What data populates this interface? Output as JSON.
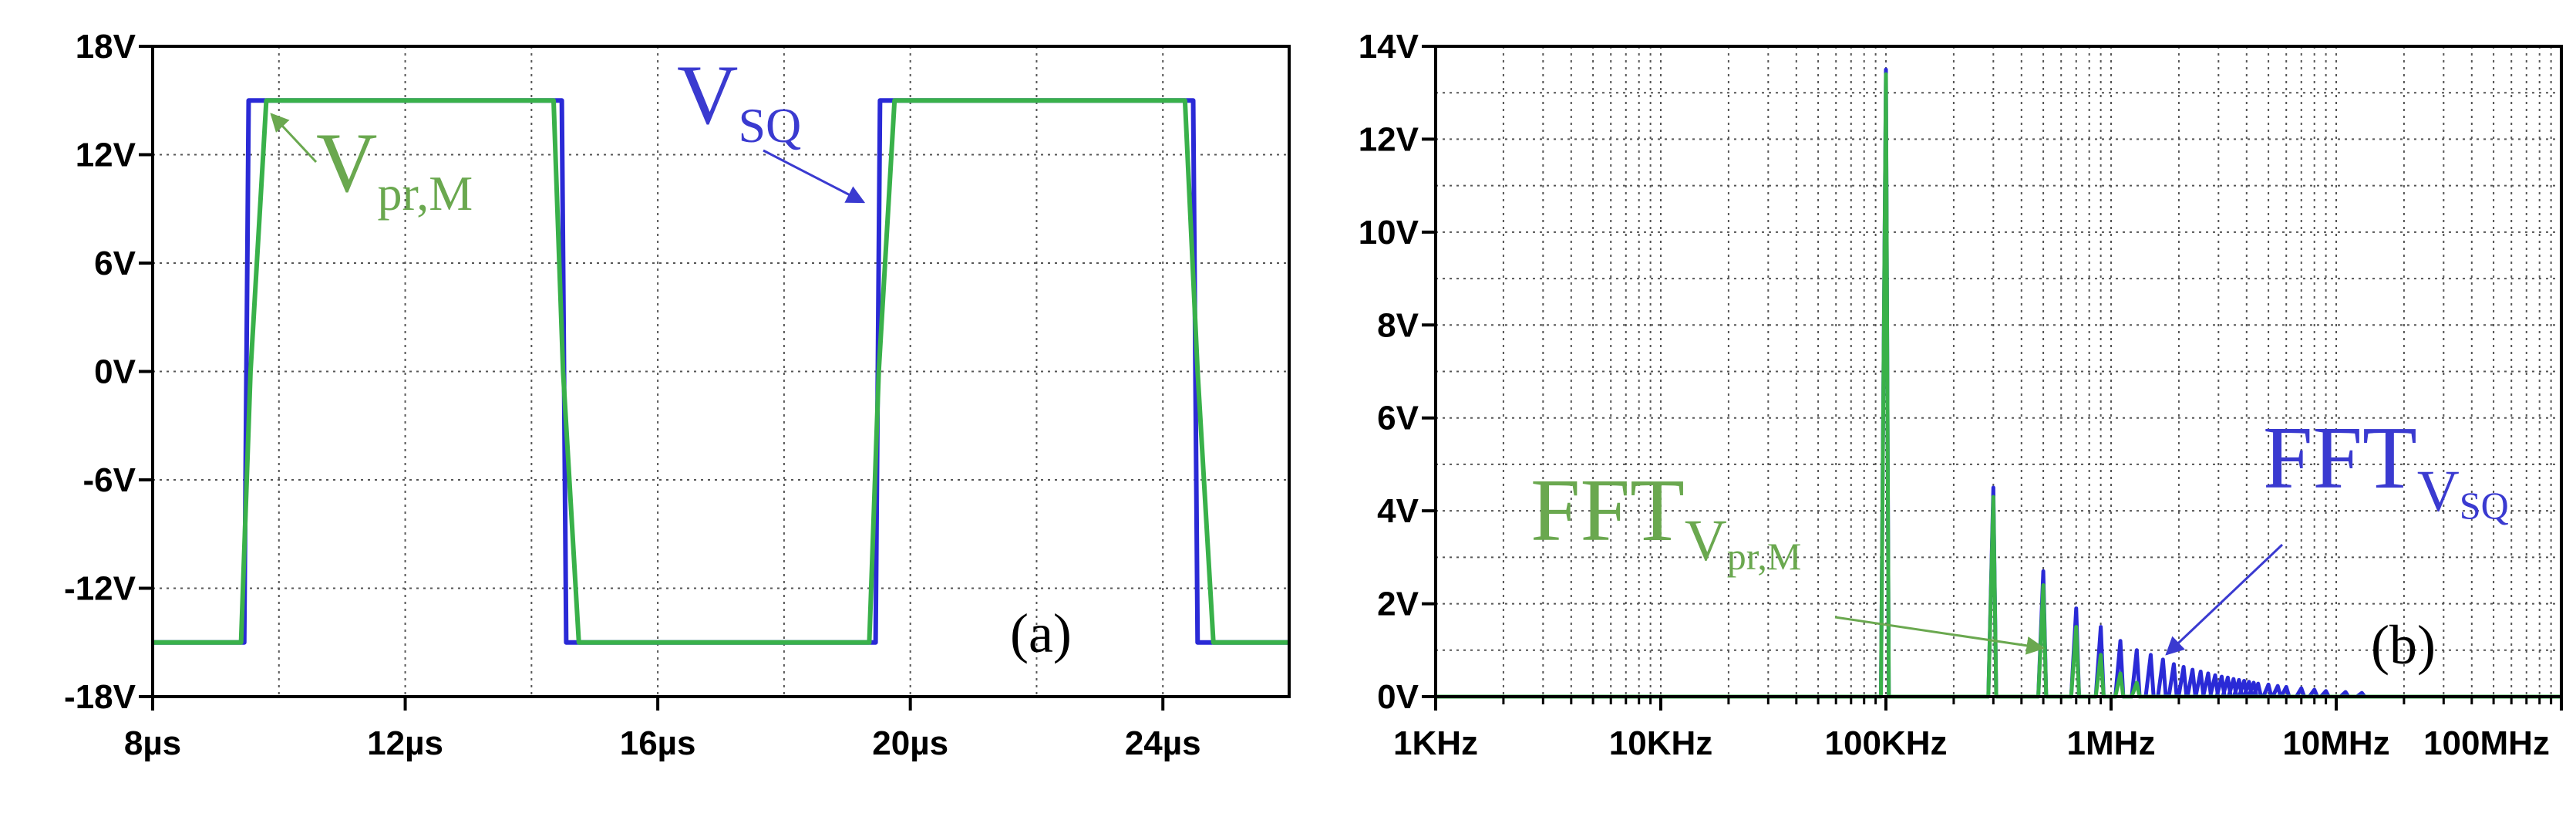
{
  "colors": {
    "blue": "#2a2ad6",
    "green": "#39b14a",
    "annot_blue": "#3a3ad0",
    "annot_green": "#6aa84f",
    "grid": "#555555",
    "frame": "#000000"
  },
  "chart_data": [
    {
      "type": "line",
      "panel_label": "(a)",
      "xlim": [
        8,
        26
      ],
      "ylim": [
        -18,
        18
      ],
      "x_ticks": [
        8,
        12,
        16,
        20,
        24
      ],
      "x_tick_labels": [
        "8µs",
        "12µs",
        "16µs",
        "20µs",
        "24µs"
      ],
      "y_ticks": [
        18,
        12,
        6,
        0,
        -6,
        -12,
        -18
      ],
      "y_tick_labels": [
        "18V",
        "12V",
        "6V",
        "0V",
        "-6V",
        "-12V",
        "-18V"
      ],
      "grid": true,
      "series": [
        {
          "name": "V_SQ",
          "color_key": "blue",
          "x": [
            8.0,
            9.45,
            9.52,
            14.48,
            14.55,
            19.45,
            19.52,
            24.48,
            24.55,
            26.0
          ],
          "y": [
            -15,
            -15,
            15,
            15,
            -15,
            -15,
            15,
            15,
            -15,
            -15
          ]
        },
        {
          "name": "V_pr,M",
          "color_key": "green",
          "x": [
            8.0,
            9.4,
            9.55,
            9.8,
            14.35,
            14.5,
            14.75,
            19.35,
            19.5,
            19.75,
            24.35,
            24.55,
            24.8,
            26.0
          ],
          "y": [
            -15,
            -15,
            0,
            15,
            15,
            0,
            -15,
            -15,
            0,
            15,
            15,
            0,
            -15,
            -15
          ]
        }
      ],
      "annotations": [
        {
          "base": "V",
          "sub": "pr,M",
          "series": "V_pr,M"
        },
        {
          "base": "V",
          "sub": "SQ",
          "series": "V_SQ"
        }
      ]
    },
    {
      "type": "line",
      "panel_label": "(b)",
      "x_scale": "log",
      "xlim": [
        1000,
        100000000
      ],
      "ylim": [
        0,
        14
      ],
      "x_ticks": [
        1000,
        10000,
        100000,
        1000000,
        10000000,
        100000000
      ],
      "x_tick_labels": [
        "1KHz",
        "10KHz",
        "100KHz",
        "1MHz",
        "10MHz",
        "100MHz"
      ],
      "y_ticks": [
        0,
        2,
        4,
        6,
        8,
        10,
        12,
        14
      ],
      "y_tick_labels": [
        "0V",
        "2V",
        "4V",
        "6V",
        "8V",
        "10V",
        "12V",
        "14V"
      ],
      "grid": true,
      "series": [
        {
          "name": "FFT_V_SQ",
          "color_key": "blue",
          "harmonic_frequencies_hz": [
            100000,
            300000,
            500000,
            700000,
            900000,
            1100000,
            1300000,
            1500000,
            1700000,
            1900000,
            2100000,
            2300000,
            2500000,
            2700000,
            2900000,
            3100000,
            3300000,
            3500000,
            3700000,
            3900000,
            4100000,
            4300000,
            4500000,
            5000000,
            5500000,
            6000000,
            7000000,
            8000000,
            9000000,
            11000000,
            13000000
          ],
          "amplitudes_v": [
            13.5,
            4.5,
            2.7,
            1.9,
            1.5,
            1.2,
            1.0,
            0.9,
            0.8,
            0.7,
            0.64,
            0.58,
            0.54,
            0.5,
            0.46,
            0.43,
            0.41,
            0.38,
            0.36,
            0.34,
            0.32,
            0.3,
            0.28,
            0.26,
            0.23,
            0.21,
            0.18,
            0.15,
            0.12,
            0.1,
            0.08
          ]
        },
        {
          "name": "FFT_V_pr,M",
          "color_key": "green",
          "harmonic_frequencies_hz": [
            100000,
            300000,
            500000,
            700000,
            900000,
            1100000,
            1300000
          ],
          "amplitudes_v": [
            13.4,
            4.3,
            2.4,
            1.5,
            0.9,
            0.5,
            0.3
          ]
        }
      ],
      "annotations": [
        {
          "base": "FFT",
          "sub": "V",
          "subsub": "pr,M",
          "series": "FFT_V_pr,M"
        },
        {
          "base": "FFT",
          "sub": "V",
          "subsub": "SQ",
          "series": "FFT_V_SQ"
        }
      ]
    }
  ]
}
